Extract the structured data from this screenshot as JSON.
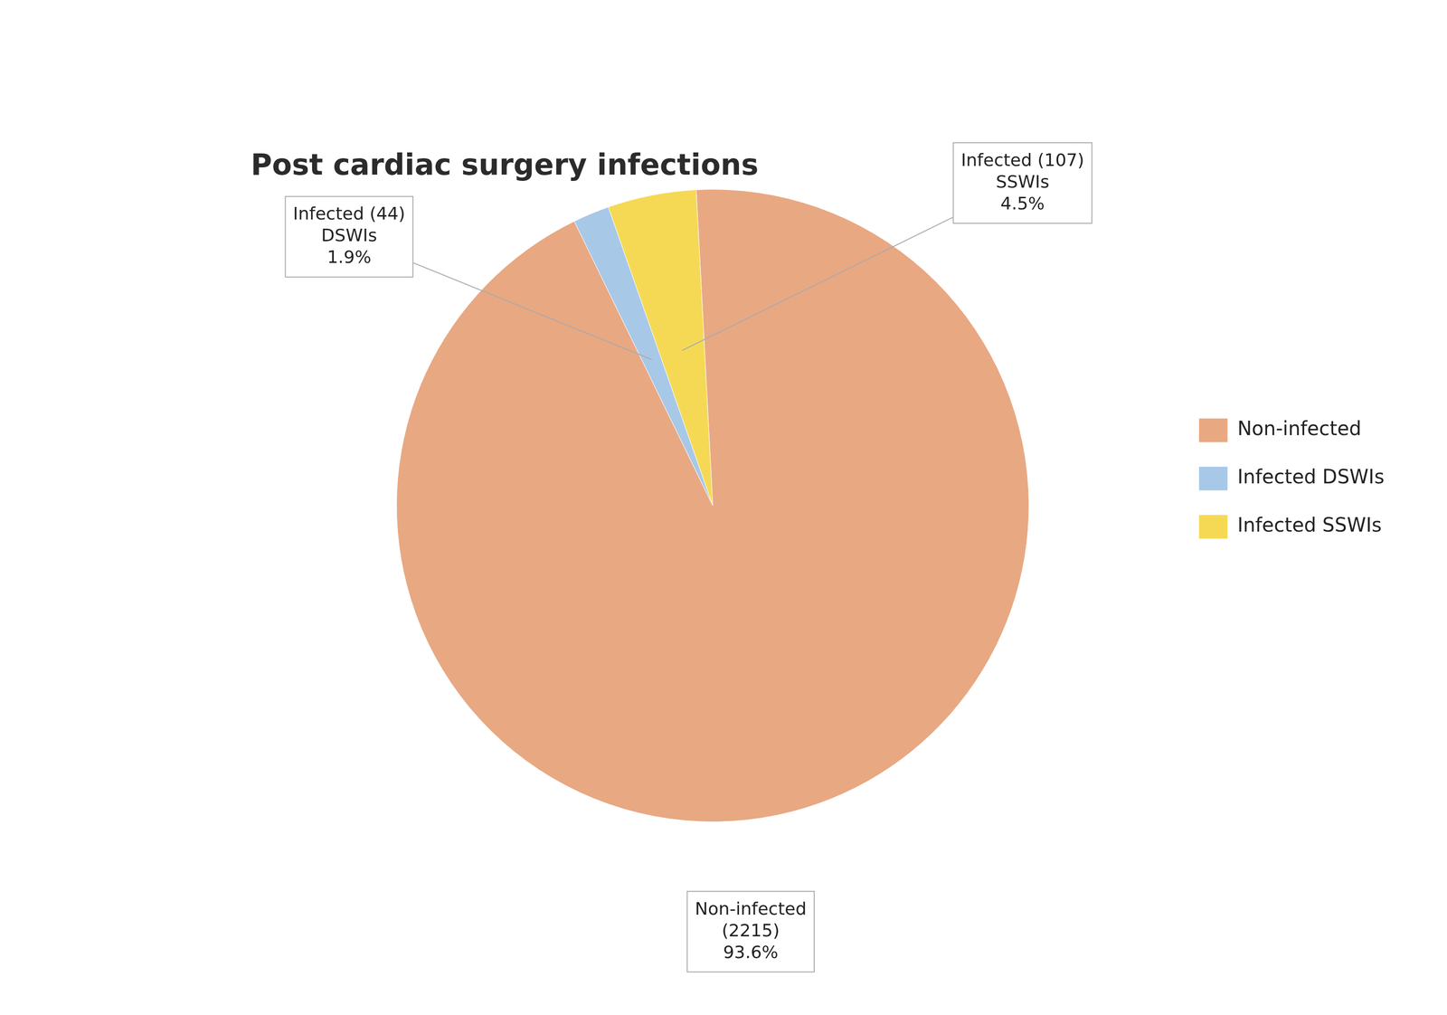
{
  "chart_data": {
    "type": "pie",
    "title": "Post cardiac surgery infections",
    "categories": [
      "Non-infected",
      "Infected DSWIs",
      "Infected SSWIs"
    ],
    "values": [
      2215,
      44,
      107
    ],
    "colors": [
      "#E8A882",
      "#A8C8E8",
      "#F5D955"
    ],
    "legend": "right",
    "annotations": [
      "Non-infected\n(2215)\n93.6%",
      "Infected (44)\nDSWIs\n1.9%",
      "Infected (107)\nSSWIs\n4.5%"
    ]
  }
}
